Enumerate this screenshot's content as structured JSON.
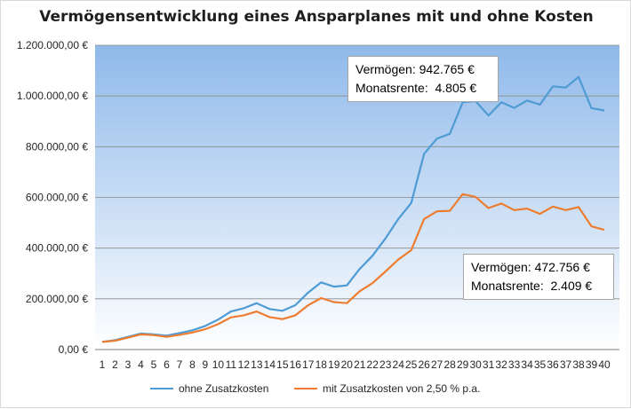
{
  "chart_data": {
    "type": "line",
    "title": "Vermögensentwicklung eines Ansparplanes mit und ohne Kosten",
    "categories": [
      "1",
      "2",
      "3",
      "4",
      "5",
      "6",
      "7",
      "8",
      "9",
      "10",
      "11",
      "12",
      "13",
      "14",
      "15",
      "16",
      "17",
      "18",
      "19",
      "20",
      "21",
      "22",
      "23",
      "24",
      "25",
      "26",
      "27",
      "28",
      "29",
      "30",
      "31",
      "32",
      "33",
      "34",
      "35",
      "36",
      "37",
      "38",
      "39",
      "40"
    ],
    "y_ticks": [
      "0,00 €",
      "200.000,00 €",
      "400.000,00 €",
      "600.000,00 €",
      "800.000,00 €",
      "1.000.000,00 €",
      "1.200.000,00 €"
    ],
    "ylim": [
      0,
      1200000
    ],
    "grid": true,
    "legend_position": "bottom",
    "series": [
      {
        "name": "ohne Zusatzkosten",
        "color": "#4f9bd4",
        "values": [
          30000,
          37000,
          50000,
          63000,
          60000,
          55000,
          65000,
          76000,
          93000,
          118000,
          150000,
          163000,
          183000,
          160000,
          153000,
          175000,
          225000,
          265000,
          248000,
          253000,
          318000,
          370000,
          438000,
          515000,
          578000,
          772000,
          832000,
          851000,
          975000,
          980000,
          923000,
          975000,
          953000,
          982000,
          966000,
          1038000,
          1033000,
          1075000,
          952000,
          943000
        ]
      },
      {
        "name": "mit Zusatzkosten von 2,50 % p.a.",
        "color": "#ed7d31",
        "values": [
          30000,
          35000,
          47000,
          60000,
          57000,
          50000,
          58000,
          67000,
          80000,
          100000,
          127000,
          135000,
          150000,
          128000,
          120000,
          135000,
          175000,
          203000,
          187000,
          183000,
          230000,
          262000,
          308000,
          355000,
          392000,
          515000,
          545000,
          547000,
          613000,
          602000,
          558000,
          576000,
          550000,
          556000,
          535000,
          564000,
          550000,
          562000,
          486000,
          472000
        ]
      }
    ],
    "annotations": [
      {
        "line1": "Vermögen: 942.765 €",
        "line2": "Monatsrente:  4.805 €"
      },
      {
        "line1": "Vermögen: 472.756 €",
        "line2": "Monatsrente:  2.409 €"
      }
    ]
  }
}
